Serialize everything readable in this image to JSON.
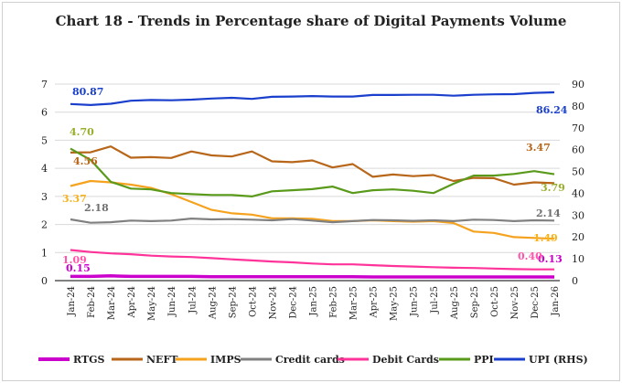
{
  "chart_data": {
    "type": "line",
    "title": "Chart 18 - Trends in Percentage share of Digital Payments Volume",
    "x": [
      "Jan-24",
      "Feb-24",
      "Mar-24",
      "Apr-24",
      "May-24",
      "Jun-24",
      "Jul-24",
      "Aug-24",
      "Sep-24",
      "Oct-24",
      "Nov-24",
      "Dec-24",
      "Jan-25",
      "Feb-25",
      "Mar-25",
      "Apr-25",
      "May-25",
      "Jun-25",
      "Jul-25",
      "Aug-25",
      "Sep-25",
      "Oct-25",
      "Nov-25",
      "Dec-25",
      "Jan-26"
    ],
    "y_left": {
      "min": 0,
      "max": 7,
      "ticks": [
        0,
        1,
        2,
        3,
        4,
        5,
        6,
        7
      ]
    },
    "y_right": {
      "min": 0,
      "max": 90,
      "ticks": [
        0,
        10,
        20,
        30,
        40,
        50,
        60,
        70,
        80,
        90
      ]
    },
    "grid": true,
    "legend": "bottom",
    "series": [
      {
        "name": "RTGS",
        "axis": "left",
        "color": "#cc00cc",
        "values": [
          0.15,
          0.15,
          0.17,
          0.15,
          0.15,
          0.15,
          0.15,
          0.14,
          0.14,
          0.14,
          0.14,
          0.14,
          0.14,
          0.14,
          0.14,
          0.13,
          0.13,
          0.13,
          0.13,
          0.13,
          0.13,
          0.13,
          0.13,
          0.13,
          0.13
        ],
        "first_label": "0.15",
        "last_label": "0.13",
        "label_color": "#cc00cc"
      },
      {
        "name": "NEFT",
        "axis": "left",
        "color": "#b8661a",
        "values": [
          4.56,
          4.57,
          4.78,
          4.38,
          4.4,
          4.37,
          4.6,
          4.46,
          4.42,
          4.6,
          4.25,
          4.22,
          4.28,
          4.03,
          4.15,
          3.7,
          3.78,
          3.72,
          3.76,
          3.55,
          3.66,
          3.65,
          3.42,
          3.5,
          3.47
        ],
        "first_label": "4.56",
        "last_label": "3.47",
        "label_color": "#b8661a"
      },
      {
        "name": "IMPS",
        "axis": "left",
        "color": "#f5a21e",
        "values": [
          3.37,
          3.55,
          3.5,
          3.42,
          3.3,
          3.08,
          2.8,
          2.52,
          2.4,
          2.35,
          2.22,
          2.22,
          2.2,
          2.12,
          2.12,
          2.15,
          2.12,
          2.1,
          2.12,
          2.05,
          1.75,
          1.7,
          1.55,
          1.52,
          1.49
        ],
        "first_label": "3.37",
        "last_label": "1.49",
        "label_color": "#f5b41e"
      },
      {
        "name": "Credit cards",
        "axis": "left",
        "color": "#808080",
        "values": [
          2.18,
          2.06,
          2.08,
          2.14,
          2.12,
          2.14,
          2.21,
          2.18,
          2.19,
          2.17,
          2.15,
          2.19,
          2.14,
          2.08,
          2.12,
          2.16,
          2.15,
          2.13,
          2.15,
          2.12,
          2.17,
          2.16,
          2.12,
          2.15,
          2.14
        ],
        "first_label": "2.18",
        "last_label": "2.14",
        "label_color": "#707070"
      },
      {
        "name": "Debit Cards",
        "axis": "left",
        "color": "#ff3399",
        "values": [
          1.09,
          1.02,
          0.97,
          0.94,
          0.89,
          0.86,
          0.84,
          0.8,
          0.76,
          0.72,
          0.68,
          0.65,
          0.61,
          0.58,
          0.58,
          0.55,
          0.52,
          0.5,
          0.48,
          0.46,
          0.45,
          0.43,
          0.41,
          0.4,
          0.4
        ],
        "first_label": "1.09",
        "last_label": "0.40",
        "label_color": "#ff55aa"
      },
      {
        "name": "PPI",
        "axis": "left",
        "color": "#5a9a1a",
        "values": [
          4.7,
          4.3,
          3.52,
          3.28,
          3.25,
          3.12,
          3.08,
          3.05,
          3.05,
          3.0,
          3.18,
          3.22,
          3.26,
          3.35,
          3.12,
          3.22,
          3.25,
          3.2,
          3.12,
          3.45,
          3.74,
          3.74,
          3.8,
          3.9,
          3.79
        ],
        "first_label": "4.70",
        "last_label": "3.79",
        "label_color": "#9aae2e"
      },
      {
        "name": "UPI (RHS)",
        "axis": "right",
        "color": "#1a3fcc",
        "values": [
          80.87,
          80.4,
          81.0,
          82.4,
          82.7,
          82.6,
          82.9,
          83.4,
          83.7,
          83.2,
          84.2,
          84.3,
          84.5,
          84.3,
          84.3,
          85.0,
          85.0,
          85.1,
          85.1,
          84.7,
          85.1,
          85.3,
          85.4,
          86.0,
          86.24
        ],
        "first_label": "80.87",
        "last_label": "86.24",
        "label_color": "#1a3fcc"
      }
    ]
  }
}
